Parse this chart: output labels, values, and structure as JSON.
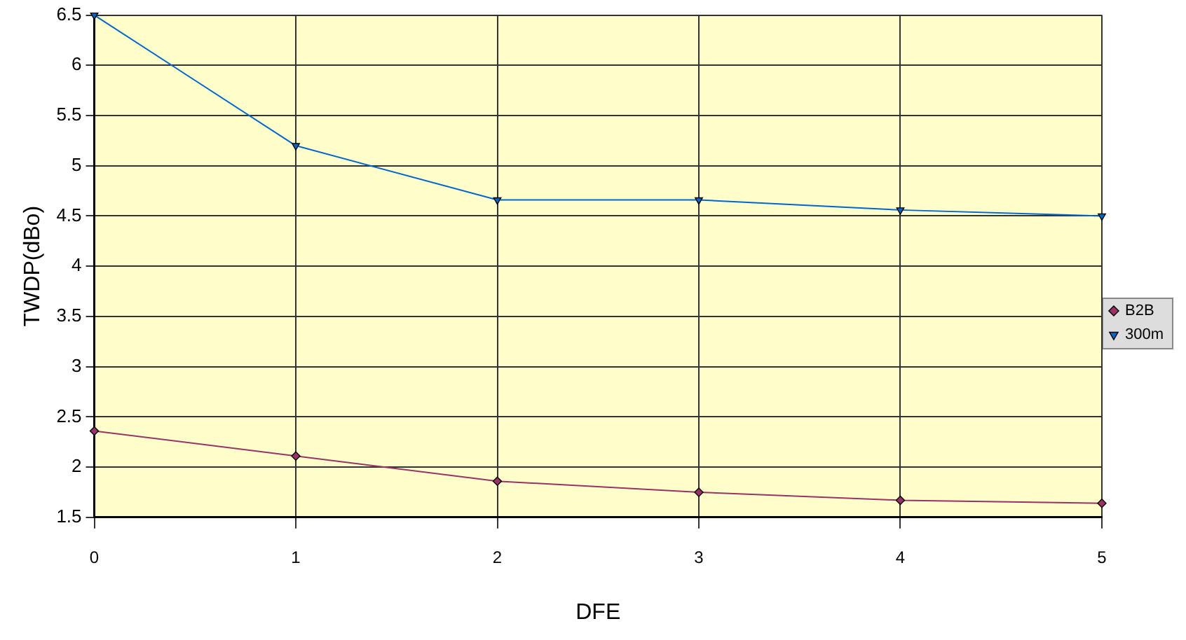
{
  "chart_data": {
    "type": "line",
    "xlabel": "DFE",
    "ylabel": "TWDP(dBo)",
    "x": [
      0,
      1,
      2,
      3,
      4,
      5
    ],
    "series": [
      {
        "name": "B2B",
        "color": "#993366",
        "marker": "diamond",
        "values": [
          2.36,
          2.11,
          1.86,
          1.75,
          1.67,
          1.64
        ]
      },
      {
        "name": "300m",
        "color": "#0066cc",
        "marker": "triangle",
        "values": [
          6.5,
          5.2,
          4.66,
          4.66,
          4.56,
          4.5
        ]
      }
    ],
    "xlim": [
      0,
      5
    ],
    "xticks": [
      0,
      1,
      2,
      3,
      4,
      5
    ],
    "ylim": [
      1.5,
      6.5
    ],
    "yticks": [
      1.5,
      2,
      2.5,
      3,
      3.5,
      4,
      4.5,
      5,
      5.5,
      6,
      6.5
    ],
    "grid": true,
    "legend": "right",
    "line_style": "solid"
  }
}
